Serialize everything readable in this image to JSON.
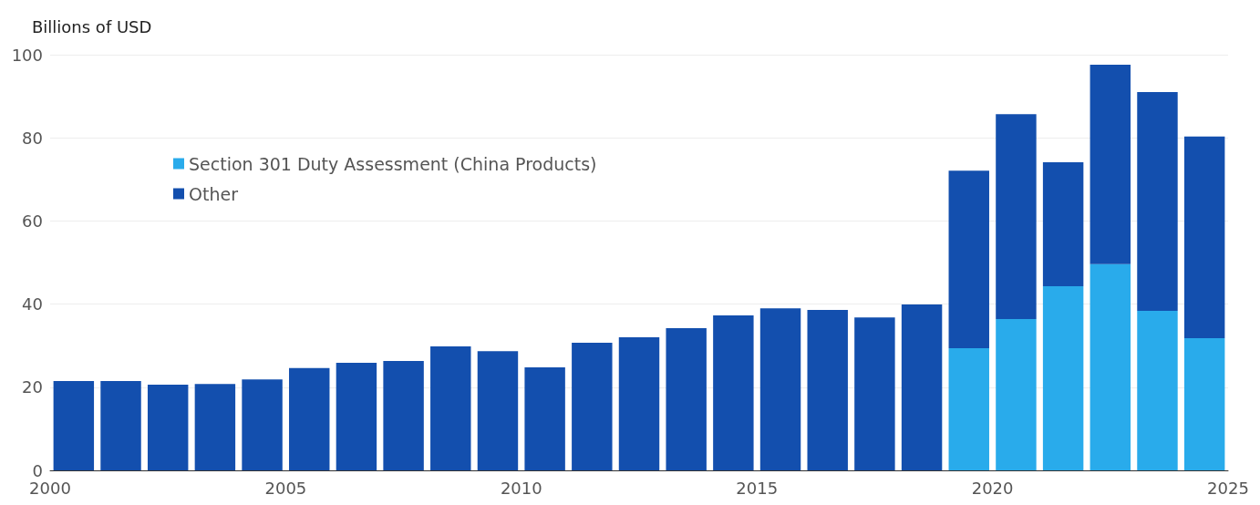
{
  "chart_data": {
    "type": "bar",
    "ylabel": "Billions of USD",
    "stacked": true,
    "x": [
      2000.5,
      2001.5,
      2002.5,
      2003.5,
      2004.5,
      2005.5,
      2006.5,
      2007.5,
      2008.5,
      2009.5,
      2010.5,
      2011.5,
      2012.5,
      2013.5,
      2014.5,
      2015.5,
      2016.5,
      2017.5,
      2018.5,
      2019.5,
      2020.5,
      2021.5,
      2022.5,
      2023.5,
      2024.5
    ],
    "series": [
      {
        "name": "Section 301 Duty Assessment (China Products)",
        "color": "#29abeb",
        "values": [
          null,
          null,
          null,
          null,
          null,
          null,
          null,
          null,
          null,
          null,
          null,
          null,
          null,
          null,
          null,
          null,
          null,
          null,
          null,
          29.4,
          36.4,
          44.3,
          49.6,
          38.4,
          31.8
        ]
      },
      {
        "name": "Other",
        "color": "#134fae",
        "values": [
          21.5,
          21.5,
          20.6,
          20.8,
          21.9,
          24.6,
          25.9,
          26.3,
          29.8,
          28.7,
          24.8,
          30.7,
          32.0,
          34.2,
          37.3,
          39.0,
          38.6,
          36.8,
          39.9,
          42.7,
          49.3,
          29.8,
          48.0,
          52.6,
          48.5
        ]
      }
    ],
    "xlim": [
      2000,
      2025
    ],
    "xticks": [
      2000,
      2005,
      2010,
      2015,
      2020,
      2025
    ],
    "ylim": [
      0,
      100
    ],
    "yticks": [
      0,
      20,
      40,
      60,
      80,
      100
    ],
    "grid": "y",
    "legend": "top left"
  }
}
